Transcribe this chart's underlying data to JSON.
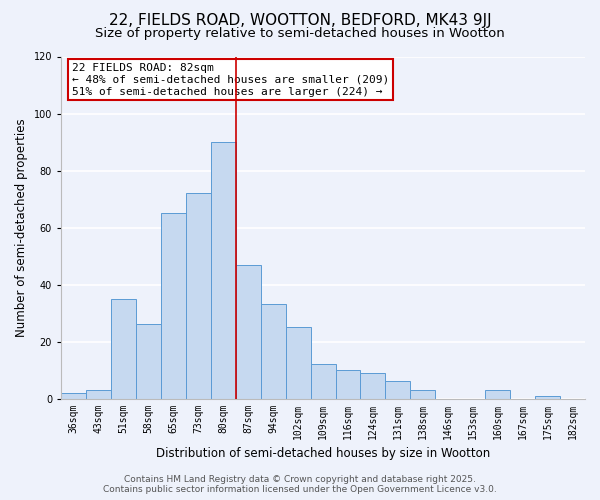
{
  "title": "22, FIELDS ROAD, WOOTTON, BEDFORD, MK43 9JJ",
  "subtitle": "Size of property relative to semi-detached houses in Wootton",
  "xlabel": "Distribution of semi-detached houses by size in Wootton",
  "ylabel": "Number of semi-detached properties",
  "bar_labels": [
    "36sqm",
    "43sqm",
    "51sqm",
    "58sqm",
    "65sqm",
    "73sqm",
    "80sqm",
    "87sqm",
    "94sqm",
    "102sqm",
    "109sqm",
    "116sqm",
    "124sqm",
    "131sqm",
    "138sqm",
    "146sqm",
    "153sqm",
    "160sqm",
    "167sqm",
    "175sqm",
    "182sqm"
  ],
  "bar_values": [
    2,
    3,
    35,
    26,
    65,
    72,
    90,
    47,
    33,
    25,
    12,
    10,
    9,
    6,
    3,
    0,
    0,
    3,
    0,
    1,
    0
  ],
  "bar_color": "#c6d9f0",
  "bar_edge_color": "#5b9bd5",
  "vline_color": "#cc0000",
  "annotation_title": "22 FIELDS ROAD: 82sqm",
  "annotation_line1": "← 48% of semi-detached houses are smaller (209)",
  "annotation_line2": "51% of semi-detached houses are larger (224) →",
  "annotation_box_color": "#ffffff",
  "annotation_box_edge": "#cc0000",
  "footer_line1": "Contains HM Land Registry data © Crown copyright and database right 2025.",
  "footer_line2": "Contains public sector information licensed under the Open Government Licence v3.0.",
  "ylim": [
    0,
    120
  ],
  "yticks": [
    0,
    20,
    40,
    60,
    80,
    100,
    120
  ],
  "bg_color": "#eef2fb",
  "grid_color": "#ffffff",
  "title_fontsize": 11,
  "subtitle_fontsize": 9.5,
  "axis_label_fontsize": 8.5,
  "tick_fontsize": 7,
  "footer_fontsize": 6.5,
  "annotation_fontsize": 8
}
